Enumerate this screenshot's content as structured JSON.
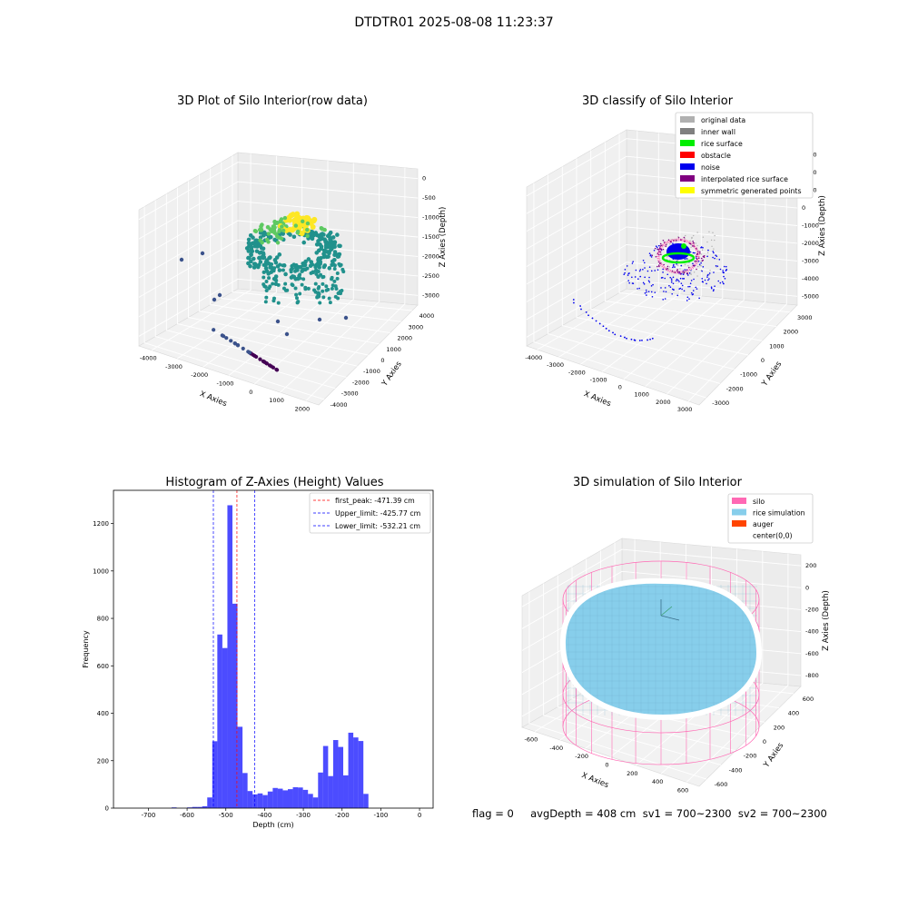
{
  "figure_title": "DTDTR01 2025-08-08 11:23:37",
  "footer": "flag = 0     avgDepth = 408 cm  sv1 = 700~2300  sv2 = 700~2300",
  "chart_data": [
    {
      "id": "raw",
      "type": "scatter3d",
      "title": "3D Plot of Silo Interior(row data)",
      "xlabel": "X Axies",
      "ylabel": "Y Axies",
      "zlabel": "Z Axies (Depth)",
      "x_ticks": [
        "-4000",
        "-3000",
        "-2000",
        "-1000",
        "0",
        "1000",
        "2000"
      ],
      "y_ticks": [
        "-4000",
        "-3000",
        "-2000",
        "-1000",
        "0",
        "1000",
        "2000",
        "3000",
        "4000"
      ],
      "z_ticks": [
        "-3000",
        "-2500",
        "-2000",
        "-1500",
        "-1000",
        "-500",
        "0"
      ],
      "colormap": [
        "#440154",
        "#3b528b",
        "#21918c",
        "#5ec962",
        "#fde725"
      ]
    },
    {
      "id": "classify",
      "type": "scatter3d",
      "title": "3D classify of Silo Interior",
      "xlabel": "X Axies",
      "ylabel": "Y Axies",
      "zlabel": "Z Axies (Depth)",
      "x_ticks": [
        "-4000",
        "-3000",
        "-2000",
        "-1000",
        "0",
        "1000",
        "2000",
        "3000"
      ],
      "y_ticks": [
        "-3000",
        "-2000",
        "-1000",
        "0",
        "1000",
        "2000",
        "3000"
      ],
      "z_ticks": [
        "-5000",
        "-4000",
        "-3000",
        "-2000",
        "-1000",
        "0",
        "1000",
        "2000",
        "3000"
      ],
      "legend": [
        {
          "label": "original data",
          "color": "#b0b0b0"
        },
        {
          "label": "inner wall",
          "color": "#808080"
        },
        {
          "label": "rice surface",
          "color": "#00ee00"
        },
        {
          "label": "obstacle",
          "color": "#ff0000"
        },
        {
          "label": "noise",
          "color": "#0000ee"
        },
        {
          "label": "interpolated rice surface",
          "color": "#800080"
        },
        {
          "label": "symmetric generated points",
          "color": "#ffff00"
        }
      ],
      "legend_placement": "top-right"
    },
    {
      "id": "hist",
      "type": "histogram",
      "title": "Histogram of Z-Axies (Height) Values",
      "xlabel": "Depth (cm)",
      "ylabel": "Frequency",
      "xlim": [
        -790,
        35
      ],
      "ylim": [
        0,
        1340
      ],
      "x_ticks": [
        -700,
        -600,
        -500,
        -400,
        -300,
        -200,
        -100,
        0
      ],
      "y_ticks": [
        0,
        200,
        400,
        600,
        800,
        1000,
        1200
      ],
      "bar_color": "#0000ff",
      "bins": [
        {
          "x0": -640,
          "x1": -627,
          "value": 3
        },
        {
          "x0": -600,
          "x1": -587,
          "value": 3
        },
        {
          "x0": -587,
          "x1": -574,
          "value": 5
        },
        {
          "x0": -574,
          "x1": -561,
          "value": 5
        },
        {
          "x0": -561,
          "x1": -548,
          "value": 8
        },
        {
          "x0": -548,
          "x1": -535,
          "value": 45
        },
        {
          "x0": -535,
          "x1": -522,
          "value": 282
        },
        {
          "x0": -522,
          "x1": -509,
          "value": 732
        },
        {
          "x0": -509,
          "x1": -496,
          "value": 675
        },
        {
          "x0": -496,
          "x1": -483,
          "value": 1277
        },
        {
          "x0": -483,
          "x1": -470,
          "value": 862
        },
        {
          "x0": -470,
          "x1": -457,
          "value": 343
        },
        {
          "x0": -457,
          "x1": -444,
          "value": 148
        },
        {
          "x0": -444,
          "x1": -431,
          "value": 72
        },
        {
          "x0": -431,
          "x1": -418,
          "value": 58
        },
        {
          "x0": -418,
          "x1": -405,
          "value": 62
        },
        {
          "x0": -405,
          "x1": -392,
          "value": 55
        },
        {
          "x0": -392,
          "x1": -379,
          "value": 70
        },
        {
          "x0": -379,
          "x1": -366,
          "value": 85
        },
        {
          "x0": -366,
          "x1": -353,
          "value": 82
        },
        {
          "x0": -353,
          "x1": -340,
          "value": 75
        },
        {
          "x0": -340,
          "x1": -327,
          "value": 80
        },
        {
          "x0": -327,
          "x1": -314,
          "value": 88
        },
        {
          "x0": -314,
          "x1": -301,
          "value": 87
        },
        {
          "x0": -301,
          "x1": -288,
          "value": 77
        },
        {
          "x0": -288,
          "x1": -275,
          "value": 60
        },
        {
          "x0": -275,
          "x1": -262,
          "value": 45
        },
        {
          "x0": -262,
          "x1": -249,
          "value": 150
        },
        {
          "x0": -249,
          "x1": -236,
          "value": 262
        },
        {
          "x0": -236,
          "x1": -223,
          "value": 135
        },
        {
          "x0": -223,
          "x1": -210,
          "value": 287
        },
        {
          "x0": -210,
          "x1": -197,
          "value": 258
        },
        {
          "x0": -197,
          "x1": -184,
          "value": 138
        },
        {
          "x0": -184,
          "x1": -171,
          "value": 318
        },
        {
          "x0": -171,
          "x1": -158,
          "value": 298
        },
        {
          "x0": -158,
          "x1": -145,
          "value": 283
        },
        {
          "x0": -145,
          "x1": -132,
          "value": 60
        }
      ],
      "vlines": [
        {
          "label": "first_peak: -471.39 cm",
          "x": -471.39,
          "color": "#ff0000"
        },
        {
          "label": "Upper_limit: -425.77 cm",
          "x": -425.77,
          "color": "#0000ff"
        },
        {
          "label": "Lower_limit: -532.21 cm",
          "x": -532.21,
          "color": "#0000ff"
        }
      ],
      "legend_placement": "top-right"
    },
    {
      "id": "sim",
      "type": "surface3d",
      "title": "3D simulation of Silo Interior",
      "xlabel": "X Axies",
      "ylabel": "Y Axies",
      "zlabel": "Z Axies (Depth)",
      "x_ticks": [
        "-600",
        "-400",
        "-200",
        "0",
        "200",
        "400",
        "600"
      ],
      "y_ticks": [
        "-600",
        "-400",
        "-200",
        "0",
        "200",
        "400",
        "600"
      ],
      "z_ticks": [
        "-800",
        "-600",
        "-400",
        "-200",
        "0",
        "200"
      ],
      "legend": [
        {
          "label": "silo",
          "color": "#ff69b4"
        },
        {
          "label": "rice simulation",
          "color": "#87ceeb"
        },
        {
          "label": "auger",
          "color": "#ff4500"
        },
        {
          "label": "center(0,0)",
          "color": "#ffffff"
        }
      ],
      "legend_placement": "top-right"
    }
  ]
}
